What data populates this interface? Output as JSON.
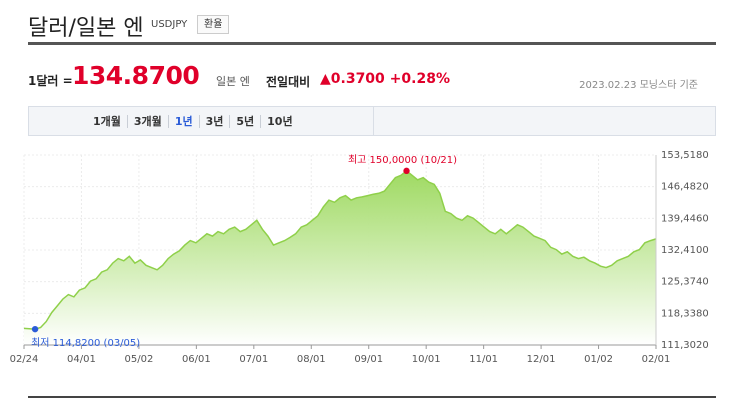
{
  "header": {
    "title": "달러/일본 엔",
    "code": "USDJPY",
    "exchange_button": "환율"
  },
  "quote": {
    "label": "1달러 =",
    "value": "134.8700",
    "unit": "일본 엔",
    "compare_label": "전일대비",
    "change": "▲0.3700 +0.28%",
    "meta": "2023.02.23 모닝스타 기준"
  },
  "tabs": [
    "1개월",
    "3개월",
    "1년",
    "3년",
    "5년",
    "10년"
  ],
  "active_tab": "1년",
  "chart_data": {
    "type": "area",
    "ylim": [
      111.302,
      153.518
    ],
    "y_ticks": [
      "153,5180",
      "146,4820",
      "139,4460",
      "132,4100",
      "125,3740",
      "118,3380",
      "111,3020"
    ],
    "x_ticks": [
      "02/24",
      "04/01",
      "05/02",
      "06/01",
      "07/01",
      "08/01",
      "09/01",
      "10/01",
      "11/01",
      "12/01",
      "01/02",
      "02/01"
    ],
    "series": [
      {
        "values": [
          115.0,
          114.9,
          114.82,
          115.2,
          116.5,
          118.5,
          120.0,
          121.5,
          122.5,
          122.0,
          123.5,
          124.0,
          125.5,
          126.0,
          127.5,
          128.0,
          129.5,
          130.5,
          130.0,
          131.0,
          129.5,
          130.2,
          129.0,
          128.5,
          128.0,
          129.0,
          130.5,
          131.5,
          132.2,
          133.5,
          134.5,
          134.0,
          135.0,
          136.0,
          135.5,
          136.5,
          136.0,
          137.0,
          137.5,
          136.5,
          137.0,
          138.0,
          139.0,
          137.0,
          135.5,
          133.5,
          134.0,
          134.5,
          135.2,
          136.0,
          137.5,
          138.0,
          139.0,
          140.0,
          142.0,
          143.5,
          143.0,
          144.0,
          144.5,
          143.5,
          144.0,
          144.2,
          144.5,
          144.8,
          145.0,
          145.5,
          147.0,
          148.5,
          149.0,
          150.0,
          149.0,
          148.0,
          148.5,
          147.5,
          147.0,
          145.0,
          141.0,
          140.5,
          139.5,
          139.0,
          140.0,
          139.5,
          138.5,
          137.5,
          136.5,
          136.0,
          137.0,
          136.0,
          137.0,
          138.0,
          137.5,
          136.5,
          135.5,
          135.0,
          134.5,
          133.0,
          132.5,
          131.5,
          132.0,
          131.0,
          130.5,
          130.8,
          130.0,
          129.5,
          128.8,
          128.5,
          129.0,
          130.0,
          130.5,
          131.0,
          132.0,
          132.5,
          134.0,
          134.5,
          134.87
        ]
      }
    ],
    "max_label": "최고 150,0000 (10/21)",
    "min_label": "최저 114,8200 (03/05)",
    "accent_color": "#8fd04a"
  }
}
